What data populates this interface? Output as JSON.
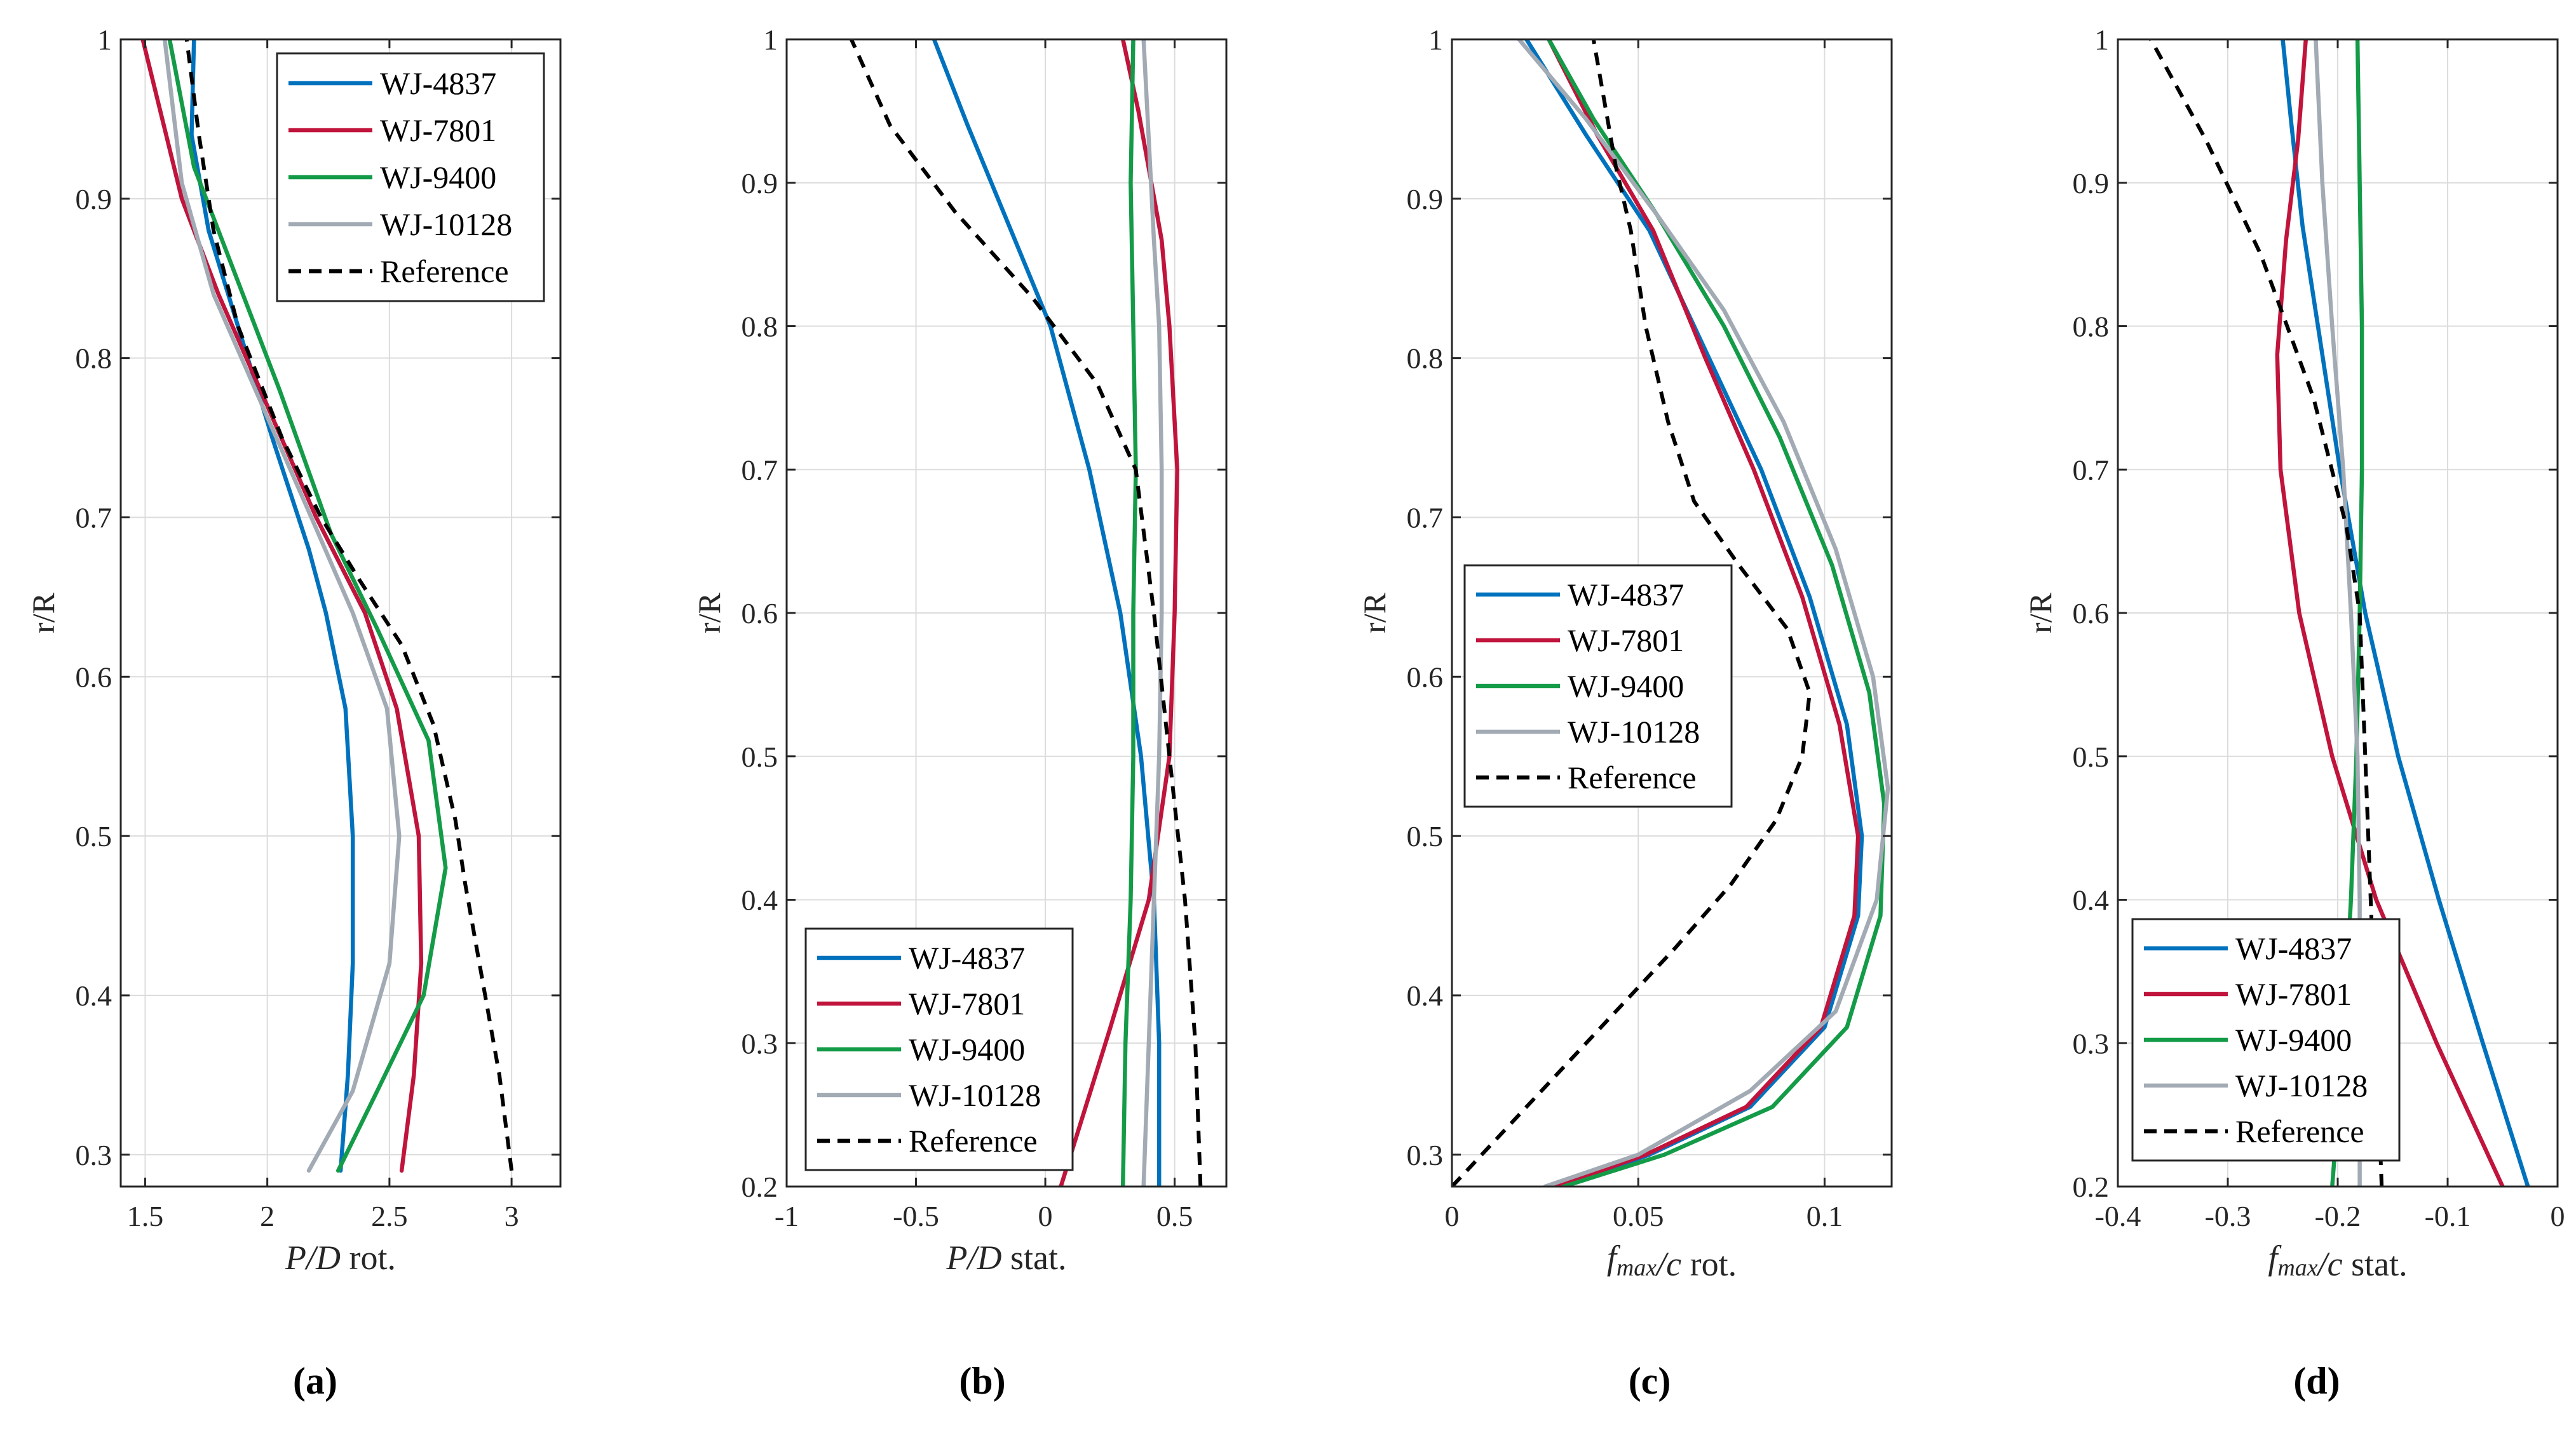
{
  "figure": {
    "captions": [
      "(a)",
      "(b)",
      "(c)",
      "(d)"
    ]
  },
  "colors": {
    "WJ-4837": "#0072BD",
    "WJ-7801": "#C0143C",
    "WJ-9400": "#149B48",
    "WJ-10128": "#A2AAB4",
    "Reference": "#000000"
  },
  "chart_data": [
    {
      "type": "line",
      "panel": "a",
      "title": "",
      "xlabel": "P/D rot.",
      "ylabel": "r/R",
      "xlim": [
        1.4,
        3.2
      ],
      "ylim": [
        0.28,
        1.0
      ],
      "xticks": [
        1.5,
        2,
        2.5,
        3
      ],
      "xtick_labels": [
        "1.5",
        "2",
        "2.5",
        "3"
      ],
      "yticks": [
        0.3,
        0.4,
        0.5,
        0.6,
        0.7,
        0.8,
        0.9,
        1.0
      ],
      "ytick_labels": [
        "0.3",
        "0.4",
        "0.5",
        "0.6",
        "0.7",
        "0.8",
        "0.9",
        "1"
      ],
      "grid": true,
      "legend": "top-right",
      "series": [
        {
          "name": "WJ-4837",
          "x": [
            2.3,
            2.33,
            2.35,
            2.35,
            2.32,
            2.24,
            2.17,
            2.02,
            1.88,
            1.76,
            1.69,
            1.7
          ],
          "y": [
            0.29,
            0.35,
            0.42,
            0.5,
            0.58,
            0.64,
            0.68,
            0.75,
            0.82,
            0.88,
            0.94,
            1.0
          ]
        },
        {
          "name": "WJ-7801",
          "x": [
            2.55,
            2.6,
            2.63,
            2.62,
            2.53,
            2.4,
            2.2,
            2.0,
            1.8,
            1.65,
            1.49
          ],
          "y": [
            0.29,
            0.35,
            0.42,
            0.5,
            0.58,
            0.64,
            0.7,
            0.77,
            0.84,
            0.9,
            1.0
          ]
        },
        {
          "name": "WJ-9400",
          "x": [
            2.29,
            2.45,
            2.64,
            2.73,
            2.66,
            2.45,
            2.26,
            2.05,
            1.85,
            1.7,
            1.6
          ],
          "y": [
            0.29,
            0.34,
            0.4,
            0.48,
            0.56,
            0.63,
            0.69,
            0.78,
            0.86,
            0.92,
            1.0
          ]
        },
        {
          "name": "WJ-10128",
          "x": [
            2.17,
            2.35,
            2.5,
            2.54,
            2.49,
            2.35,
            2.18,
            1.98,
            1.78,
            1.65,
            1.58
          ],
          "y": [
            0.29,
            0.34,
            0.42,
            0.5,
            0.58,
            0.64,
            0.7,
            0.77,
            0.84,
            0.91,
            1.0
          ]
        },
        {
          "name": "Reference",
          "dashed": true,
          "x": [
            3.0,
            2.95,
            2.88,
            2.81,
            2.77,
            2.68,
            2.55,
            2.38,
            2.22,
            2.06,
            1.88,
            1.78,
            1.72,
            1.67
          ],
          "y": [
            0.29,
            0.35,
            0.41,
            0.47,
            0.51,
            0.57,
            0.62,
            0.66,
            0.7,
            0.75,
            0.82,
            0.88,
            0.94,
            1.0
          ]
        }
      ]
    },
    {
      "type": "line",
      "panel": "b",
      "title": "",
      "xlabel": "P/D stat.",
      "ylabel": "r/R",
      "xlim": [
        -1,
        0.7
      ],
      "ylim": [
        0.2,
        1.0
      ],
      "xticks": [
        -1,
        -0.5,
        0,
        0.5
      ],
      "xtick_labels": [
        "-1",
        "-0.5",
        "0",
        "0.5"
      ],
      "yticks": [
        0.2,
        0.3,
        0.4,
        0.5,
        0.6,
        0.7,
        0.8,
        0.9,
        1.0
      ],
      "ytick_labels": [
        "0.2",
        "0.3",
        "0.4",
        "0.5",
        "0.6",
        "0.7",
        "0.8",
        "0.9",
        "1"
      ],
      "grid": true,
      "legend": "bottom-right",
      "series": [
        {
          "name": "WJ-4837",
          "x": [
            0.44,
            0.44,
            0.42,
            0.37,
            0.29,
            0.17,
            0.02,
            -0.14,
            -0.3,
            -0.43
          ],
          "y": [
            0.2,
            0.3,
            0.4,
            0.5,
            0.6,
            0.7,
            0.8,
            0.87,
            0.94,
            1.0
          ]
        },
        {
          "name": "WJ-7801",
          "x": [
            0.06,
            0.25,
            0.4,
            0.48,
            0.5,
            0.51,
            0.48,
            0.45,
            0.41,
            0.36,
            0.3
          ],
          "y": [
            0.2,
            0.31,
            0.4,
            0.5,
            0.6,
            0.7,
            0.8,
            0.86,
            0.9,
            0.95,
            1.0
          ]
        },
        {
          "name": "WJ-9400",
          "x": [
            0.3,
            0.31,
            0.33,
            0.34,
            0.34,
            0.35,
            0.34,
            0.33,
            0.34
          ],
          "y": [
            0.2,
            0.3,
            0.4,
            0.5,
            0.6,
            0.7,
            0.8,
            0.9,
            1.0
          ]
        },
        {
          "name": "WJ-10128",
          "x": [
            0.38,
            0.4,
            0.42,
            0.44,
            0.45,
            0.45,
            0.44,
            0.42,
            0.4,
            0.38
          ],
          "y": [
            0.2,
            0.3,
            0.4,
            0.5,
            0.6,
            0.7,
            0.8,
            0.86,
            0.93,
            1.0
          ]
        },
        {
          "name": "Reference",
          "dashed": true,
          "x": [
            0.6,
            0.58,
            0.54,
            0.48,
            0.42,
            0.35,
            0.2,
            -0.05,
            -0.35,
            -0.6,
            -0.75
          ],
          "y": [
            0.2,
            0.3,
            0.4,
            0.5,
            0.6,
            0.7,
            0.76,
            0.82,
            0.88,
            0.94,
            1.0
          ]
        }
      ]
    },
    {
      "type": "line",
      "panel": "c",
      "title": "",
      "xlabel": "fmax/c rot.",
      "ylabel": "r/R",
      "xlim": [
        0,
        0.118
      ],
      "ylim": [
        0.28,
        1.0
      ],
      "xticks": [
        0,
        0.05,
        0.1
      ],
      "xtick_labels": [
        "0",
        "0.05",
        "0.1"
      ],
      "yticks": [
        0.3,
        0.4,
        0.5,
        0.6,
        0.7,
        0.8,
        0.9,
        1.0
      ],
      "ytick_labels": [
        "0.3",
        "0.4",
        "0.5",
        "0.6",
        "0.7",
        "0.8",
        "0.9",
        "1"
      ],
      "grid": true,
      "legend": "middle-left",
      "series": [
        {
          "name": "WJ-4837",
          "x": [
            0.029,
            0.053,
            0.08,
            0.1,
            0.109,
            0.11,
            0.106,
            0.096,
            0.083,
            0.069,
            0.053,
            0.036,
            0.02
          ],
          "y": [
            0.28,
            0.3,
            0.33,
            0.38,
            0.45,
            0.5,
            0.57,
            0.65,
            0.73,
            0.8,
            0.88,
            0.94,
            1.0
          ]
        },
        {
          "name": "WJ-7801",
          "x": [
            0.028,
            0.052,
            0.079,
            0.099,
            0.108,
            0.109,
            0.104,
            0.094,
            0.081,
            0.068,
            0.054,
            0.039,
            0.026
          ],
          "y": [
            0.28,
            0.3,
            0.33,
            0.38,
            0.45,
            0.5,
            0.57,
            0.65,
            0.73,
            0.8,
            0.88,
            0.94,
            1.0
          ]
        },
        {
          "name": "WJ-9400",
          "x": [
            0.03,
            0.057,
            0.086,
            0.106,
            0.115,
            0.116,
            0.112,
            0.102,
            0.088,
            0.073,
            0.055,
            0.038,
            0.026
          ],
          "y": [
            0.28,
            0.3,
            0.33,
            0.38,
            0.45,
            0.52,
            0.59,
            0.67,
            0.75,
            0.82,
            0.89,
            0.95,
            1.0
          ]
        },
        {
          "name": "WJ-10128",
          "x": [
            0.025,
            0.05,
            0.08,
            0.103,
            0.114,
            0.117,
            0.113,
            0.103,
            0.089,
            0.073,
            0.055,
            0.036,
            0.018
          ],
          "y": [
            0.28,
            0.3,
            0.34,
            0.39,
            0.46,
            0.53,
            0.6,
            0.68,
            0.76,
            0.83,
            0.89,
            0.95,
            1.0
          ]
        },
        {
          "name": "Reference",
          "dashed": true,
          "x": [
            0.0,
            0.02,
            0.04,
            0.06,
            0.075,
            0.087,
            0.094,
            0.096,
            0.09,
            0.077,
            0.065,
            0.058,
            0.052,
            0.048,
            0.044,
            0.041,
            0.038
          ],
          "y": [
            0.28,
            0.33,
            0.38,
            0.43,
            0.47,
            0.51,
            0.55,
            0.59,
            0.63,
            0.67,
            0.71,
            0.76,
            0.82,
            0.88,
            0.92,
            0.96,
            1.0
          ]
        }
      ]
    },
    {
      "type": "line",
      "panel": "d",
      "title": "",
      "xlabel": "fmax/c stat.",
      "ylabel": "r/R",
      "xlim": [
        -0.4,
        0
      ],
      "ylim": [
        0.2,
        1.0
      ],
      "xticks": [
        -0.4,
        -0.3,
        -0.2,
        -0.1,
        0
      ],
      "xtick_labels": [
        "-0.4",
        "-0.3",
        "-0.2",
        "-0.1",
        "0"
      ],
      "yticks": [
        0.2,
        0.3,
        0.4,
        0.5,
        0.6,
        0.7,
        0.8,
        0.9,
        1.0
      ],
      "ytick_labels": [
        "0.2",
        "0.3",
        "0.4",
        "0.5",
        "0.6",
        "0.7",
        "0.8",
        "0.9",
        "1"
      ],
      "grid": true,
      "legend": "bottom-left",
      "series": [
        {
          "name": "WJ-4837",
          "x": [
            -0.027,
            -0.068,
            -0.108,
            -0.145,
            -0.175,
            -0.198,
            -0.218,
            -0.232,
            -0.242,
            -0.25
          ],
          "y": [
            0.2,
            0.3,
            0.4,
            0.5,
            0.6,
            0.7,
            0.8,
            0.87,
            0.94,
            1.0
          ]
        },
        {
          "name": "WJ-7801",
          "x": [
            -0.05,
            -0.11,
            -0.165,
            -0.205,
            -0.235,
            -0.252,
            -0.255,
            -0.247,
            -0.236,
            -0.229
          ],
          "y": [
            0.2,
            0.3,
            0.4,
            0.5,
            0.6,
            0.7,
            0.78,
            0.86,
            0.93,
            1.0
          ]
        },
        {
          "name": "WJ-9400",
          "x": [
            -0.205,
            -0.195,
            -0.188,
            -0.183,
            -0.18,
            -0.178,
            -0.178,
            -0.18,
            -0.182
          ],
          "y": [
            0.2,
            0.3,
            0.4,
            0.5,
            0.6,
            0.7,
            0.8,
            0.9,
            1.0
          ]
        },
        {
          "name": "WJ-10128",
          "x": [
            -0.18,
            -0.18,
            -0.18,
            -0.182,
            -0.188,
            -0.195,
            -0.205,
            -0.214,
            -0.22
          ],
          "y": [
            0.2,
            0.3,
            0.4,
            0.5,
            0.6,
            0.7,
            0.8,
            0.9,
            1.0
          ]
        },
        {
          "name": "Reference",
          "dashed": true,
          "x": [
            -0.16,
            -0.165,
            -0.17,
            -0.175,
            -0.18,
            -0.192,
            -0.222,
            -0.27,
            -0.32,
            -0.37
          ],
          "y": [
            0.2,
            0.3,
            0.4,
            0.5,
            0.6,
            0.66,
            0.75,
            0.85,
            0.93,
            1.0
          ]
        }
      ]
    }
  ]
}
